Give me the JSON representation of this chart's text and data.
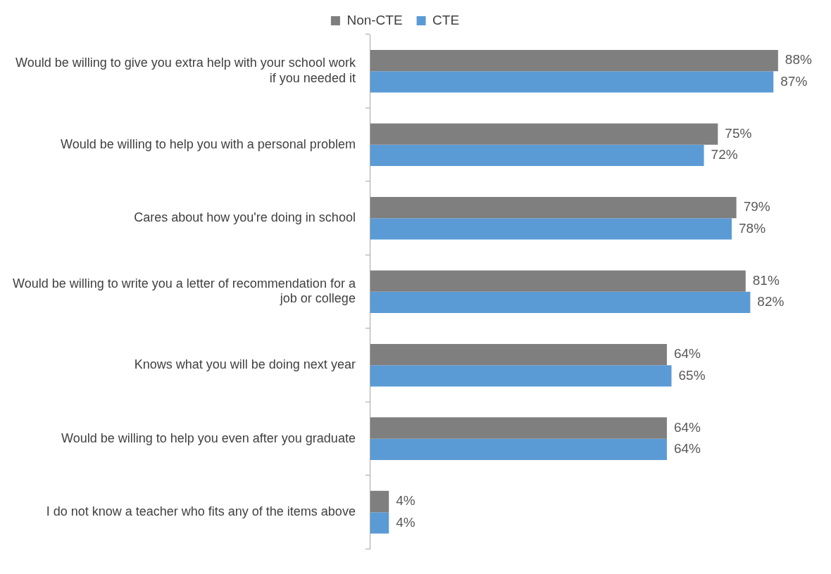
{
  "chart_data": {
    "type": "bar",
    "orientation": "horizontal",
    "legend": "top",
    "tick_labels": "y",
    "categories": [
      "Would be willing to give you extra help with your school work if you needed it",
      "Would be willing to help you with a personal problem",
      "Cares about how you're doing in school",
      "Would be willing to write you a letter of recommendation for a job or college",
      "Knows what you will be doing next year",
      "Would be willing to help you even after you graduate",
      "I do not know a teacher who fits any of the items above"
    ],
    "series": [
      {
        "name": "Non-CTE",
        "color": "#7f7f7f",
        "values": [
          88,
          75,
          79,
          81,
          64,
          64,
          4
        ],
        "value_labels": [
          "88%",
          "75%",
          "79%",
          "81%",
          "64%",
          "64%",
          "4%"
        ]
      },
      {
        "name": "CTE",
        "color": "#5b9bd5",
        "values": [
          87,
          72,
          78,
          82,
          65,
          64,
          4
        ],
        "value_labels": [
          "87%",
          "72%",
          "78%",
          "82%",
          "65%",
          "64%",
          "4%"
        ]
      }
    ]
  }
}
